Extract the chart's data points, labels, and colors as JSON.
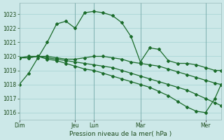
{
  "bg_color": "#cce8e8",
  "grid_color": "#99cccc",
  "line_color": "#1a6b2a",
  "ylim": [
    1015.5,
    1023.8
  ],
  "yticks": [
    1016,
    1017,
    1018,
    1019,
    1020,
    1021,
    1022,
    1023
  ],
  "xlabel": "Pression niveau de la mer( hPa )",
  "day_labels": [
    "Dim",
    "",
    "Jeu",
    "Lun",
    "",
    "Mar",
    "",
    "Mer"
  ],
  "xtick_major_pos": [
    0,
    36,
    48,
    78,
    120
  ],
  "xtick_major_labels": [
    "Dim",
    "Jeu",
    "Lun",
    "Mar",
    "Mer"
  ],
  "xlim": [
    0,
    130
  ],
  "vline_positions": [
    0,
    36,
    48,
    78,
    120
  ],
  "series": [
    {
      "x": [
        0,
        6,
        12,
        18,
        24,
        30,
        36,
        42,
        48,
        54,
        60,
        66,
        72,
        78,
        84,
        90,
        96,
        102,
        108,
        114,
        120,
        126,
        130
      ],
      "y": [
        1018.0,
        1018.8,
        1019.9,
        1021.0,
        1022.3,
        1022.5,
        1022.0,
        1023.1,
        1023.2,
        1023.1,
        1022.9,
        1022.4,
        1021.4,
        1019.6,
        1020.6,
        1020.5,
        1019.7,
        1019.5,
        1019.5,
        1019.4,
        1019.2,
        1019.0,
        1019.0
      ]
    },
    {
      "x": [
        0,
        6,
        12,
        18,
        24,
        30,
        36,
        42,
        48,
        54,
        60,
        66,
        72,
        78,
        84,
        90,
        96,
        102,
        108,
        114,
        120,
        126,
        130
      ],
      "y": [
        1019.9,
        1020.0,
        1020.0,
        1020.0,
        1019.9,
        1019.8,
        1019.8,
        1019.9,
        1020.0,
        1020.0,
        1019.9,
        1019.8,
        1019.6,
        1019.5,
        1019.4,
        1019.3,
        1019.1,
        1018.9,
        1018.7,
        1018.5,
        1018.3,
        1018.1,
        1018.0
      ]
    },
    {
      "x": [
        0,
        6,
        12,
        18,
        24,
        30,
        36,
        42,
        48,
        54,
        60,
        66,
        72,
        78,
        84,
        90,
        96,
        102,
        108,
        114,
        120,
        126,
        130
      ],
      "y": [
        1019.9,
        1019.9,
        1020.0,
        1019.9,
        1019.8,
        1019.7,
        1019.6,
        1019.5,
        1019.4,
        1019.3,
        1019.2,
        1019.0,
        1018.8,
        1018.6,
        1018.4,
        1018.2,
        1018.0,
        1017.8,
        1017.6,
        1017.3,
        1017.0,
        1016.7,
        1016.5
      ]
    },
    {
      "x": [
        0,
        6,
        12,
        18,
        24,
        30,
        36,
        42,
        48,
        54,
        60,
        66,
        72,
        78,
        84,
        90,
        96,
        102,
        108,
        114,
        120,
        126,
        130
      ],
      "y": [
        1019.9,
        1019.9,
        1020.0,
        1019.8,
        1019.7,
        1019.5,
        1019.3,
        1019.1,
        1019.0,
        1018.8,
        1018.6,
        1018.4,
        1018.2,
        1018.0,
        1017.8,
        1017.5,
        1017.2,
        1016.8,
        1016.4,
        1016.1,
        1016.0,
        1017.0,
        1018.0
      ]
    }
  ]
}
